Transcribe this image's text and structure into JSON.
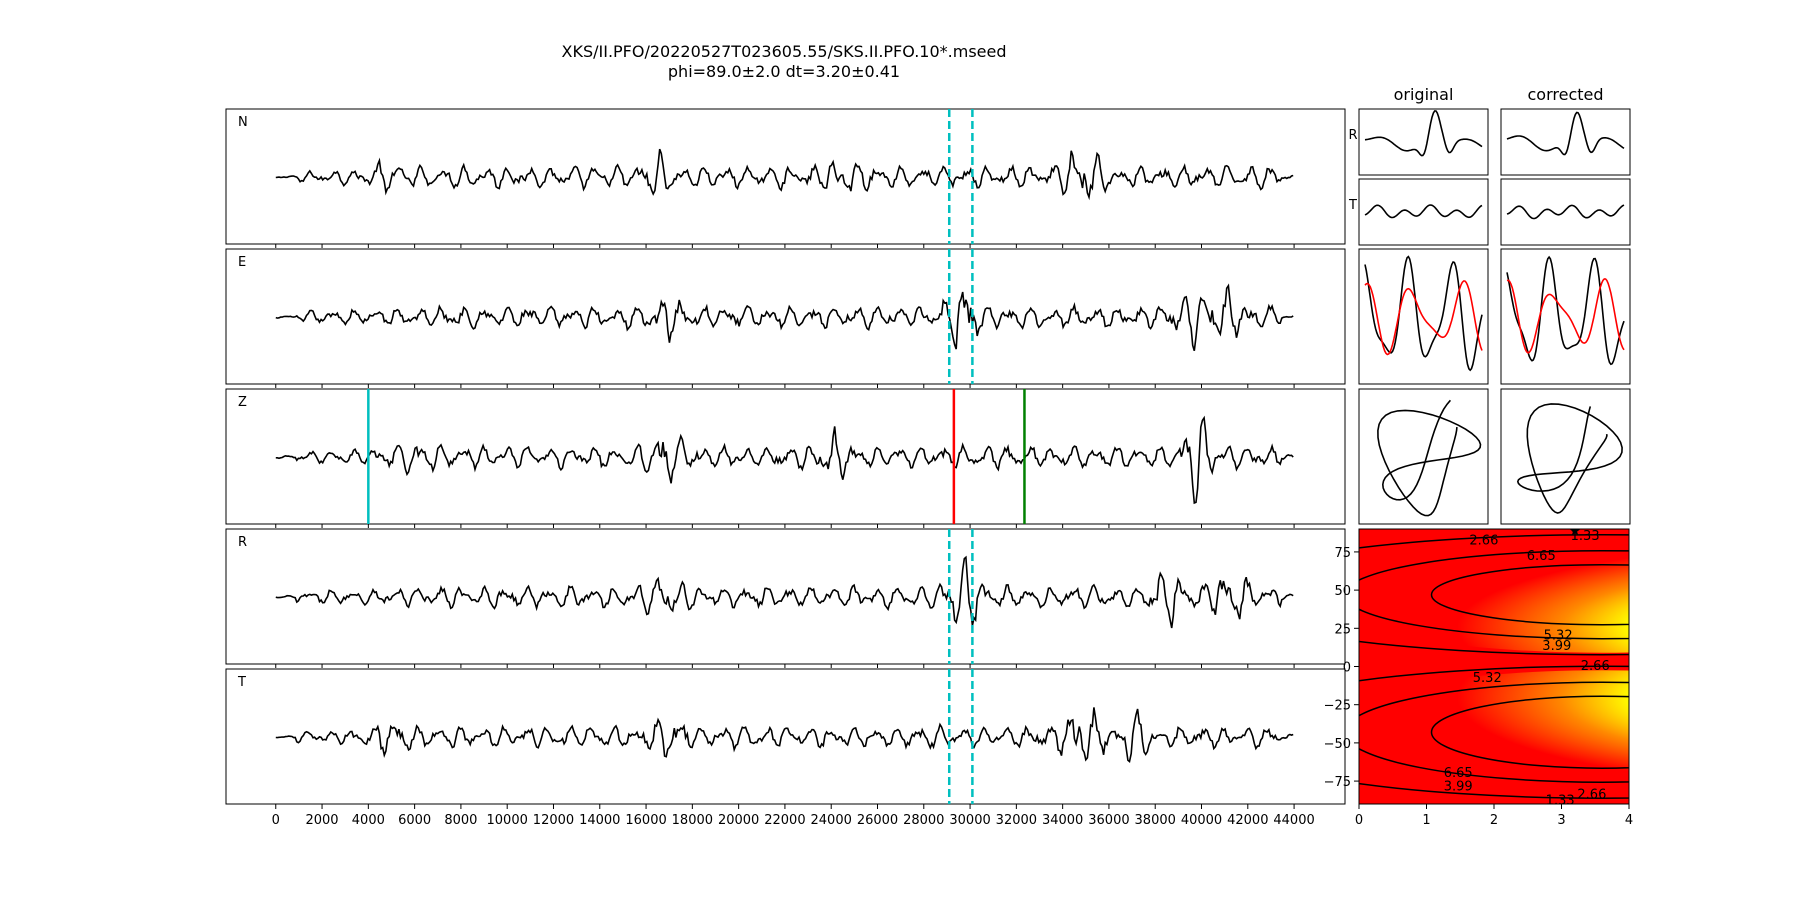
{
  "figure": {
    "title": "XKS/II.PFO/20220527T023605.55/SKS.II.PFO.10*.mseed",
    "subtitle": "phi=89.0±2.0 dt=3.20±0.41"
  },
  "chart_data": [
    {
      "type": "line",
      "name": "waveform-traces",
      "panels": [
        "N",
        "E",
        "Z",
        "R",
        "T"
      ],
      "x_ticks": [
        0,
        2000,
        4000,
        6000,
        8000,
        10000,
        12000,
        14000,
        16000,
        18000,
        20000,
        22000,
        24000,
        26000,
        28000,
        30000,
        32000,
        34000,
        36000,
        38000,
        40000,
        42000,
        44000
      ],
      "x_tick_labels": [
        "0",
        "2000",
        "4000",
        "6000",
        "8000",
        "10000",
        "12000",
        "14000",
        "16000",
        "18000",
        "20000",
        "22000",
        "24000",
        "26000",
        "28000",
        "30000",
        "32000",
        "34000",
        "36000",
        "38000",
        "40000",
        "42000",
        "44000"
      ],
      "xlim": [
        -2150,
        46200
      ],
      "data_x_range": [
        0,
        44000
      ],
      "window_lines_dashed": [
        29100,
        30100
      ],
      "z_markers": [
        {
          "x": 4000,
          "color": "#00bfbf"
        },
        {
          "x": 29300,
          "color": "#ff0000"
        },
        {
          "x": 32350,
          "color": "#008000"
        }
      ],
      "bursts": {
        "N": [
          {
            "x": 34800,
            "amp": 0.95
          },
          {
            "x": 16500,
            "amp": 0.45
          },
          {
            "x": 24500,
            "amp": 0.4
          },
          {
            "x": 5000,
            "amp": 0.35
          }
        ],
        "E": [
          {
            "x": 29700,
            "amp": 1.0
          },
          {
            "x": 39700,
            "amp": 0.75
          },
          {
            "x": 16800,
            "amp": 0.45
          },
          {
            "x": 41000,
            "amp": 0.55
          }
        ],
        "Z": [
          {
            "x": 39800,
            "amp": 1.0
          },
          {
            "x": 16800,
            "amp": 0.55
          },
          {
            "x": 24000,
            "amp": 0.5
          },
          {
            "x": 6000,
            "amp": 0.4
          }
        ],
        "R": [
          {
            "x": 29700,
            "amp": 1.0
          },
          {
            "x": 41200,
            "amp": 0.7
          },
          {
            "x": 16800,
            "amp": 0.45
          },
          {
            "x": 38500,
            "amp": 0.6
          }
        ],
        "T": [
          {
            "x": 34800,
            "amp": 0.95
          },
          {
            "x": 5000,
            "amp": 0.35
          },
          {
            "x": 17000,
            "amp": 0.4
          },
          {
            "x": 37000,
            "amp": 0.45
          }
        ]
      }
    },
    {
      "type": "line",
      "name": "particle-panels",
      "column_titles": [
        "original",
        "corrected"
      ],
      "row_labels": [
        "R",
        "T"
      ],
      "series_colors": [
        "#000000",
        "#ff0000"
      ]
    },
    {
      "type": "heatmap",
      "name": "error-surface",
      "xlim": [
        0,
        4
      ],
      "ylim": [
        -90,
        90
      ],
      "x_ticks": [
        0,
        1,
        2,
        3,
        4
      ],
      "x_tick_labels": [
        "0",
        "1",
        "2",
        "3",
        "4"
      ],
      "y_ticks": [
        -75,
        -50,
        -25,
        0,
        25,
        50,
        75
      ],
      "y_tick_labels": [
        "−75",
        "−50",
        "−25",
        "0",
        "25",
        "50",
        "75"
      ],
      "contour_labels": [
        {
          "text": "2.66",
          "x": 1.85,
          "y": 83
        },
        {
          "text": "6.65",
          "x": 2.7,
          "y": 73
        },
        {
          "text": "1.33",
          "x": 3.35,
          "y": 86
        },
        {
          "text": "5.32",
          "x": 2.95,
          "y": 21
        },
        {
          "text": "3.99",
          "x": 2.93,
          "y": 14
        },
        {
          "text": "2.66",
          "x": 3.5,
          "y": 1
        },
        {
          "text": "5.32",
          "x": 1.9,
          "y": -7
        },
        {
          "text": "6.65",
          "x": 1.47,
          "y": -69
        },
        {
          "text": "3.99",
          "x": 1.47,
          "y": -78
        },
        {
          "text": "2.66",
          "x": 3.45,
          "y": -83
        },
        {
          "text": "1.33",
          "x": 2.98,
          "y": -87
        }
      ],
      "best_fit": {
        "phi": 89.0,
        "dt": 3.2
      }
    }
  ]
}
